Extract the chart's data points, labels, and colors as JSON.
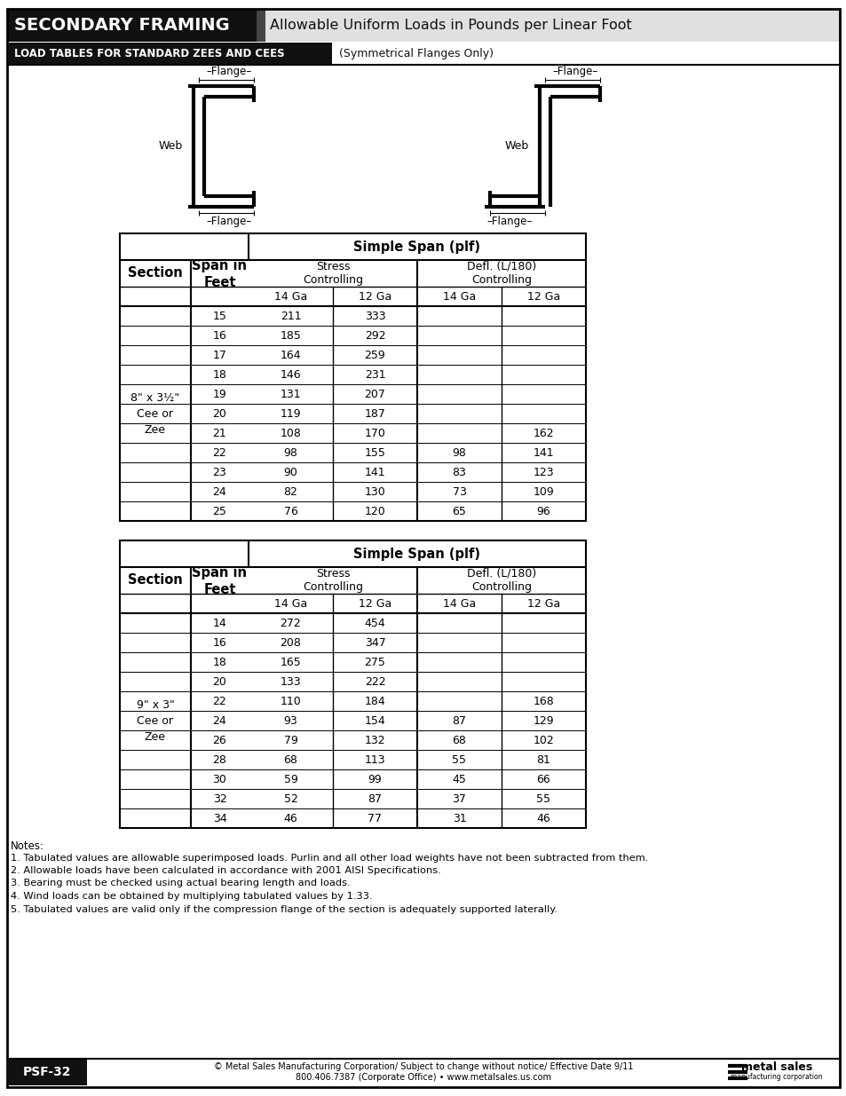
{
  "title_left": "SECONDARY FRAMING",
  "title_right": "Allowable Uniform Loads in Pounds per Linear Foot",
  "subtitle_left": "LOAD TABLES FOR STANDARD ZEES AND CEES",
  "subtitle_right": "(Symmetrical Flanges Only)",
  "table1_section": "8\" x 3½\"\nCee or\nZee",
  "table1_data": [
    [
      15,
      211,
      333,
      "",
      ""
    ],
    [
      16,
      185,
      292,
      "",
      ""
    ],
    [
      17,
      164,
      259,
      "",
      ""
    ],
    [
      18,
      146,
      231,
      "",
      ""
    ],
    [
      19,
      131,
      207,
      "",
      ""
    ],
    [
      20,
      119,
      187,
      "",
      ""
    ],
    [
      21,
      108,
      170,
      "",
      "162"
    ],
    [
      22,
      98,
      155,
      "98",
      "141"
    ],
    [
      23,
      90,
      141,
      "83",
      "123"
    ],
    [
      24,
      82,
      130,
      "73",
      "109"
    ],
    [
      25,
      76,
      120,
      "65",
      "96"
    ]
  ],
  "table2_section": "9\" x 3\"\nCee or\nZee",
  "table2_data": [
    [
      14,
      272,
      454,
      "",
      ""
    ],
    [
      16,
      208,
      347,
      "",
      ""
    ],
    [
      18,
      165,
      275,
      "",
      ""
    ],
    [
      20,
      133,
      222,
      "",
      ""
    ],
    [
      22,
      110,
      184,
      "",
      "168"
    ],
    [
      24,
      93,
      154,
      "87",
      "129"
    ],
    [
      26,
      79,
      132,
      "68",
      "102"
    ],
    [
      28,
      68,
      113,
      "55",
      "81"
    ],
    [
      30,
      59,
      99,
      "45",
      "66"
    ],
    [
      32,
      52,
      87,
      "37",
      "55"
    ],
    [
      34,
      46,
      77,
      "31",
      "46"
    ]
  ],
  "notes": [
    "Notes:",
    "1. Tabulated values are allowable superimposed loads. Purlin and all other load weights have not been subtracted from them.",
    "2. Allowable loads have been calculated in accordance with 2001 AISI Specifications.",
    "3. Bearing must be checked using actual bearing length and loads.",
    "4. Wind loads can be obtained by multiplying tabulated values by 1.33.",
    "5. Tabulated values are valid only if the compression flange of the section is adequately supported laterally."
  ],
  "footer_left": "PSF-32",
  "footer_center_1": "© Metal Sales Manufacturing Corporation/ Subject to change without notice/ Effective Date 9/11",
  "footer_center_2": "800.406.7387 (Corporate Office) • www.metalsales.us.com"
}
